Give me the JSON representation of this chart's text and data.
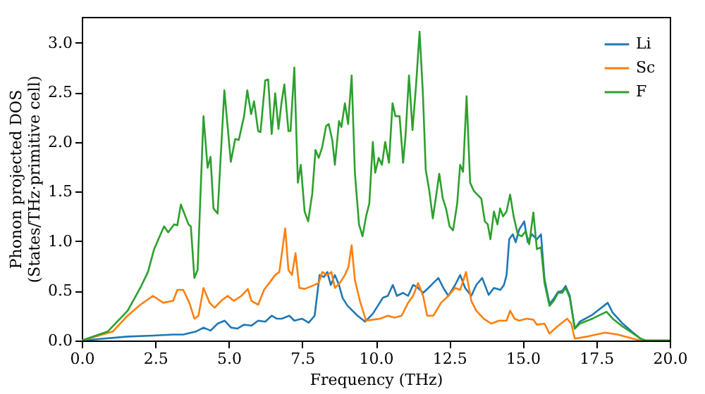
{
  "chart_data": {
    "type": "line",
    "xlabel": "Frequency (THz)",
    "ylabel": "Phonon projected DOS\n(States/THz·primitive cell)",
    "xlim": [
      0,
      20
    ],
    "ylim": [
      0,
      3.26
    ],
    "xticks": [
      {
        "value": 0,
        "label": "0.0"
      },
      2.5,
      {
        "value": 5,
        "label": "5.0"
      },
      7.5,
      {
        "value": 10,
        "label": "10.0"
      },
      12.5,
      {
        "value": 15,
        "label": "15.0"
      },
      17.5,
      {
        "value": 20,
        "label": "20.0"
      }
    ],
    "yticks": [
      {
        "value": 0,
        "label": "0.0"
      },
      0.5,
      {
        "value": 1,
        "label": "1.0"
      },
      1.5,
      {
        "value": 2,
        "label": "2.0"
      },
      2.5,
      {
        "value": 3,
        "label": "3.0"
      }
    ],
    "grid": false,
    "legend": "top right",
    "line_style": "solid",
    "marker": "none",
    "series": [
      {
        "name": "Li",
        "color": "#1f77b4",
        "x": [
          0,
          1.56,
          2.42,
          3.11,
          3.45,
          3.88,
          4.14,
          4.38,
          4.62,
          4.86,
          5.08,
          5.29,
          5.52,
          5.77,
          6.0,
          6.24,
          6.46,
          6.63,
          6.8,
          7.06,
          7.23,
          7.49,
          7.72,
          7.92,
          8.09,
          8.23,
          8.35,
          8.47,
          8.61,
          8.75,
          8.87,
          9.04,
          9.21,
          9.38,
          9.64,
          9.9,
          10.07,
          10.24,
          10.41,
          10.58,
          10.72,
          10.93,
          11.1,
          11.27,
          11.44,
          11.61,
          11.79,
          11.96,
          12.13,
          12.3,
          12.47,
          12.7,
          12.87,
          13.04,
          13.25,
          13.42,
          13.62,
          13.84,
          14.02,
          14.24,
          14.36,
          14.45,
          14.54,
          14.66,
          14.76,
          14.88,
          15.05,
          15.17,
          15.31,
          15.48,
          15.62,
          15.74,
          15.91,
          16.05,
          16.2,
          16.34,
          16.46,
          16.6,
          16.77,
          16.94,
          17.37,
          17.89,
          18.06,
          18.4,
          18.71,
          19.0,
          19.18,
          20.0
        ],
        "values": [
          0,
          0.04,
          0.05,
          0.06,
          0.06,
          0.09,
          0.13,
          0.1,
          0.17,
          0.2,
          0.13,
          0.12,
          0.16,
          0.15,
          0.2,
          0.19,
          0.25,
          0.22,
          0.22,
          0.25,
          0.2,
          0.22,
          0.18,
          0.25,
          0.66,
          0.64,
          0.69,
          0.56,
          0.66,
          0.56,
          0.43,
          0.35,
          0.3,
          0.25,
          0.19,
          0.27,
          0.35,
          0.43,
          0.45,
          0.56,
          0.45,
          0.48,
          0.45,
          0.56,
          0.53,
          0.48,
          0.53,
          0.58,
          0.63,
          0.53,
          0.45,
          0.56,
          0.66,
          0.53,
          0.45,
          0.56,
          0.63,
          0.46,
          0.53,
          0.51,
          0.56,
          0.66,
          1.02,
          1.07,
          0.99,
          1.12,
          1.2,
          0.99,
          1.07,
          1.02,
          1.07,
          0.62,
          0.37,
          0.42,
          0.49,
          0.5,
          0.55,
          0.45,
          0.12,
          0.19,
          0.26,
          0.38,
          0.28,
          0.17,
          0.09,
          0.02,
          0,
          0
        ]
      },
      {
        "name": "Sc",
        "color": "#ff7f0e",
        "x": [
          0,
          1.05,
          1.56,
          1.99,
          2.42,
          2.77,
          3.11,
          3.25,
          3.45,
          3.66,
          3.83,
          3.97,
          4.14,
          4.35,
          4.52,
          4.74,
          4.96,
          5.17,
          5.43,
          5.65,
          5.77,
          6.0,
          6.2,
          6.38,
          6.58,
          6.72,
          6.92,
          7.03,
          7.15,
          7.27,
          7.4,
          7.58,
          7.84,
          8.06,
          8.18,
          8.35,
          8.49,
          8.61,
          8.78,
          8.95,
          9.07,
          9.18,
          9.29,
          9.46,
          9.67,
          9.9,
          10.15,
          10.41,
          10.64,
          10.88,
          11.1,
          11.27,
          11.44,
          11.61,
          11.75,
          11.96,
          12.22,
          12.47,
          12.7,
          12.87,
          13.07,
          13.25,
          13.42,
          13.67,
          13.93,
          14.19,
          14.45,
          14.57,
          14.72,
          14.88,
          15.13,
          15.36,
          15.48,
          15.74,
          15.91,
          16.17,
          16.51,
          16.65,
          16.77,
          17.2,
          17.8,
          18.23,
          18.74,
          19.0,
          20.0
        ],
        "values": [
          0,
          0.09,
          0.25,
          0.36,
          0.45,
          0.38,
          0.4,
          0.51,
          0.51,
          0.38,
          0.22,
          0.25,
          0.53,
          0.38,
          0.33,
          0.4,
          0.45,
          0.4,
          0.45,
          0.52,
          0.4,
          0.36,
          0.51,
          0.58,
          0.66,
          0.69,
          1.13,
          0.71,
          0.66,
          0.88,
          0.53,
          0.52,
          0.55,
          0.58,
          0.69,
          0.66,
          0.69,
          0.53,
          0.58,
          0.66,
          0.74,
          0.96,
          0.61,
          0.4,
          0.2,
          0.21,
          0.22,
          0.25,
          0.23,
          0.25,
          0.38,
          0.45,
          0.58,
          0.45,
          0.25,
          0.25,
          0.38,
          0.45,
          0.53,
          0.51,
          0.69,
          0.4,
          0.3,
          0.22,
          0.17,
          0.2,
          0.2,
          0.3,
          0.22,
          0.2,
          0.22,
          0.21,
          0.16,
          0.17,
          0.07,
          0.14,
          0.22,
          0.17,
          0.02,
          0.04,
          0.08,
          0.06,
          0.02,
          0,
          0
        ]
      },
      {
        "name": "F",
        "color": "#2ca02c",
        "x": [
          0,
          0.88,
          1.56,
          1.99,
          2.25,
          2.46,
          2.68,
          2.8,
          2.94,
          3.14,
          3.25,
          3.37,
          3.63,
          3.71,
          3.83,
          3.94,
          4.14,
          4.28,
          4.38,
          4.48,
          4.62,
          4.85,
          5.07,
          5.22,
          5.34,
          5.52,
          5.63,
          5.76,
          5.86,
          6.0,
          6.08,
          6.24,
          6.34,
          6.46,
          6.58,
          6.69,
          6.8,
          6.89,
          7.03,
          7.1,
          7.23,
          7.35,
          7.45,
          7.58,
          7.7,
          7.84,
          7.95,
          8.06,
          8.18,
          8.31,
          8.4,
          8.52,
          8.61,
          8.75,
          8.83,
          8.95,
          9.06,
          9.18,
          9.29,
          9.43,
          9.55,
          9.67,
          9.78,
          9.9,
          9.98,
          10.1,
          10.21,
          10.32,
          10.45,
          10.57,
          10.67,
          10.81,
          10.93,
          11.01,
          11.13,
          11.25,
          11.37,
          11.49,
          11.6,
          11.7,
          11.82,
          11.94,
          12.04,
          12.16,
          12.28,
          12.39,
          12.51,
          12.63,
          12.77,
          12.87,
          12.97,
          13.09,
          13.21,
          13.33,
          13.42,
          13.59,
          13.71,
          13.81,
          13.9,
          14.02,
          14.14,
          14.23,
          14.33,
          14.45,
          14.57,
          14.69,
          14.83,
          14.96,
          15.1,
          15.22,
          15.36,
          15.48,
          15.62,
          15.74,
          15.91,
          16.05,
          16.2,
          16.34,
          16.46,
          16.6,
          16.77,
          16.94,
          17.37,
          17.85,
          18.06,
          18.4,
          18.71,
          19.0,
          19.18,
          20.0
        ],
        "values": [
          0,
          0.09,
          0.3,
          0.53,
          0.69,
          0.92,
          1.07,
          1.15,
          1.09,
          1.17,
          1.16,
          1.37,
          1.17,
          1.15,
          0.63,
          0.71,
          2.26,
          1.74,
          1.85,
          1.33,
          1.28,
          2.52,
          1.8,
          2.03,
          2.02,
          2.26,
          2.52,
          2.28,
          2.41,
          2.11,
          2.1,
          2.62,
          2.63,
          2.08,
          2.49,
          2.13,
          2.41,
          2.58,
          2.11,
          2.11,
          2.75,
          1.59,
          1.77,
          1.3,
          1.2,
          1.48,
          1.92,
          1.84,
          1.95,
          2.16,
          2.18,
          2.02,
          1.77,
          2.21,
          2.15,
          2.39,
          2.18,
          2.67,
          1.69,
          1.17,
          1.05,
          1.25,
          1.38,
          2.0,
          1.69,
          1.84,
          1.77,
          2.0,
          1.79,
          2.39,
          2.26,
          2.26,
          1.79,
          2.05,
          2.67,
          2.12,
          2.57,
          3.11,
          2.51,
          1.72,
          1.51,
          1.23,
          1.43,
          1.68,
          1.43,
          1.33,
          1.15,
          1.11,
          1.38,
          1.77,
          1.7,
          2.46,
          1.59,
          1.51,
          1.48,
          1.43,
          1.2,
          1.17,
          1.02,
          1.3,
          1.17,
          1.33,
          1.25,
          1.3,
          1.47,
          1.25,
          1.07,
          1.05,
          1.1,
          0.97,
          1.29,
          0.92,
          0.94,
          0.58,
          0.35,
          0.4,
          0.48,
          0.48,
          0.53,
          0.43,
          0.12,
          0.17,
          0.22,
          0.29,
          0.22,
          0.14,
          0.08,
          0.02,
          0,
          0
        ]
      }
    ]
  }
}
